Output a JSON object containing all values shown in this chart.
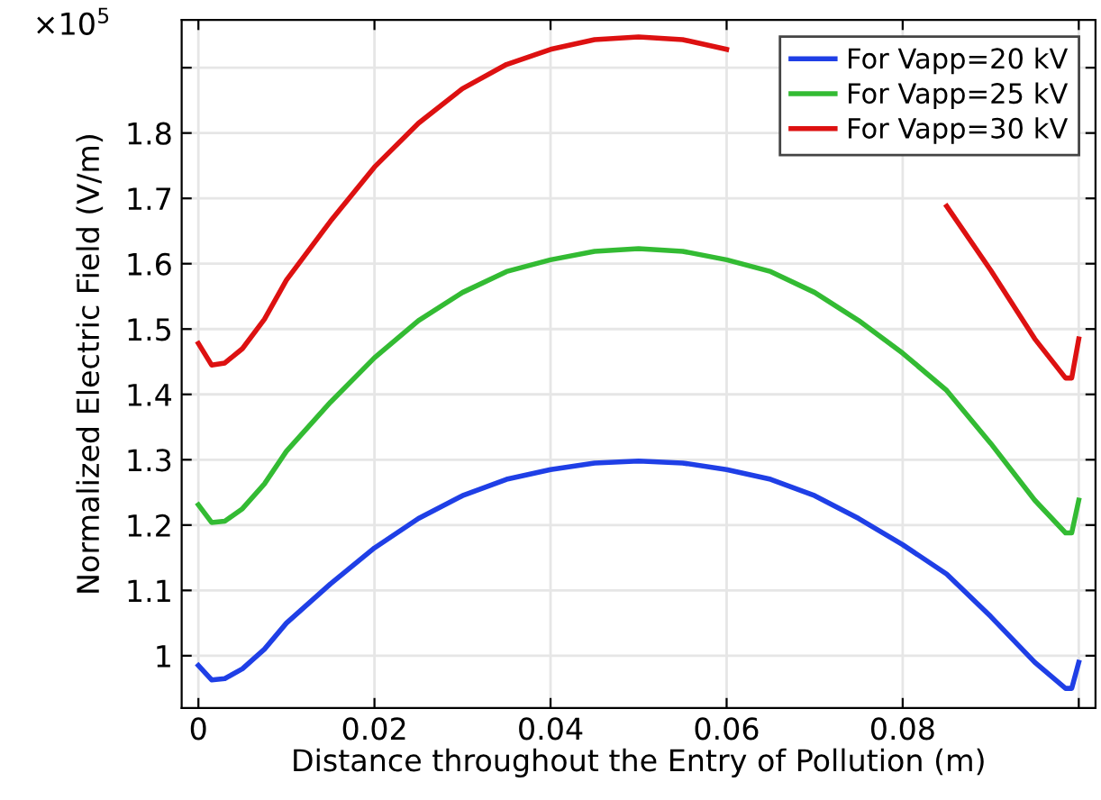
{
  "chart_data": {
    "type": "line",
    "xlabel": "Distance throughout the Entry of Pollution (m)",
    "ylabel": "Normalized Electric Field (V/m)",
    "annotations": [
      "×10$^{5}$"
    ],
    "x": [
      0,
      0.0015,
      0.003,
      0.005,
      0.0075,
      0.01,
      0.015,
      0.02,
      0.025,
      0.03,
      0.035,
      0.04,
      0.045,
      0.05,
      0.055,
      0.06,
      0.065,
      0.07,
      0.075,
      0.08,
      0.085,
      0.09,
      0.095,
      0.0985,
      0.0992,
      0.1
    ],
    "series": [
      {
        "name": "For Vapp=20 kV",
        "color": "#1f3fe6",
        "values": [
          0.985,
          0.963,
          0.965,
          0.98,
          1.01,
          1.05,
          1.11,
          1.165,
          1.21,
          1.245,
          1.27,
          1.285,
          1.295,
          1.298,
          1.295,
          1.285,
          1.27,
          1.245,
          1.21,
          1.17,
          1.125,
          1.06,
          0.99,
          0.95,
          0.95,
          0.99
        ]
      },
      {
        "name": "For Vapp=25 kV",
        "color": "#33bb33",
        "values": [
          1.231,
          1.204,
          1.206,
          1.225,
          1.263,
          1.313,
          1.388,
          1.456,
          1.513,
          1.556,
          1.588,
          1.606,
          1.619,
          1.623,
          1.619,
          1.606,
          1.588,
          1.556,
          1.513,
          1.463,
          1.406,
          1.325,
          1.238,
          1.188,
          1.188,
          1.238
        ]
      },
      {
        "name": "For Vapp=30 kV",
        "color": "#dd1111",
        "values": [
          1.478,
          1.445,
          1.448,
          1.47,
          1.515,
          1.575,
          1.665,
          1.748,
          1.815,
          1.868,
          1.905,
          1.928,
          1.943,
          1.947,
          1.943,
          1.928,
          null,
          null,
          null,
          null,
          1.688,
          1.59,
          1.485,
          1.425,
          1.425,
          1.485
        ]
      }
    ],
    "xlim": [
      -0.0019,
      0.1019
    ],
    "xticks": [
      0,
      0.02,
      0.04,
      0.06,
      0.08,
      {
        "value": 0.1,
        "label": null
      }
    ],
    "ylim": [
      0.92,
      1.973
    ],
    "yticks": [
      1,
      1.1,
      1.2,
      1.3,
      1.4,
      1.5,
      1.6,
      1.7,
      1.8,
      {
        "value": 1.9,
        "label": null
      }
    ],
    "grid": true,
    "legend": "top right",
    "line_style": "solid",
    "marker": "none"
  }
}
